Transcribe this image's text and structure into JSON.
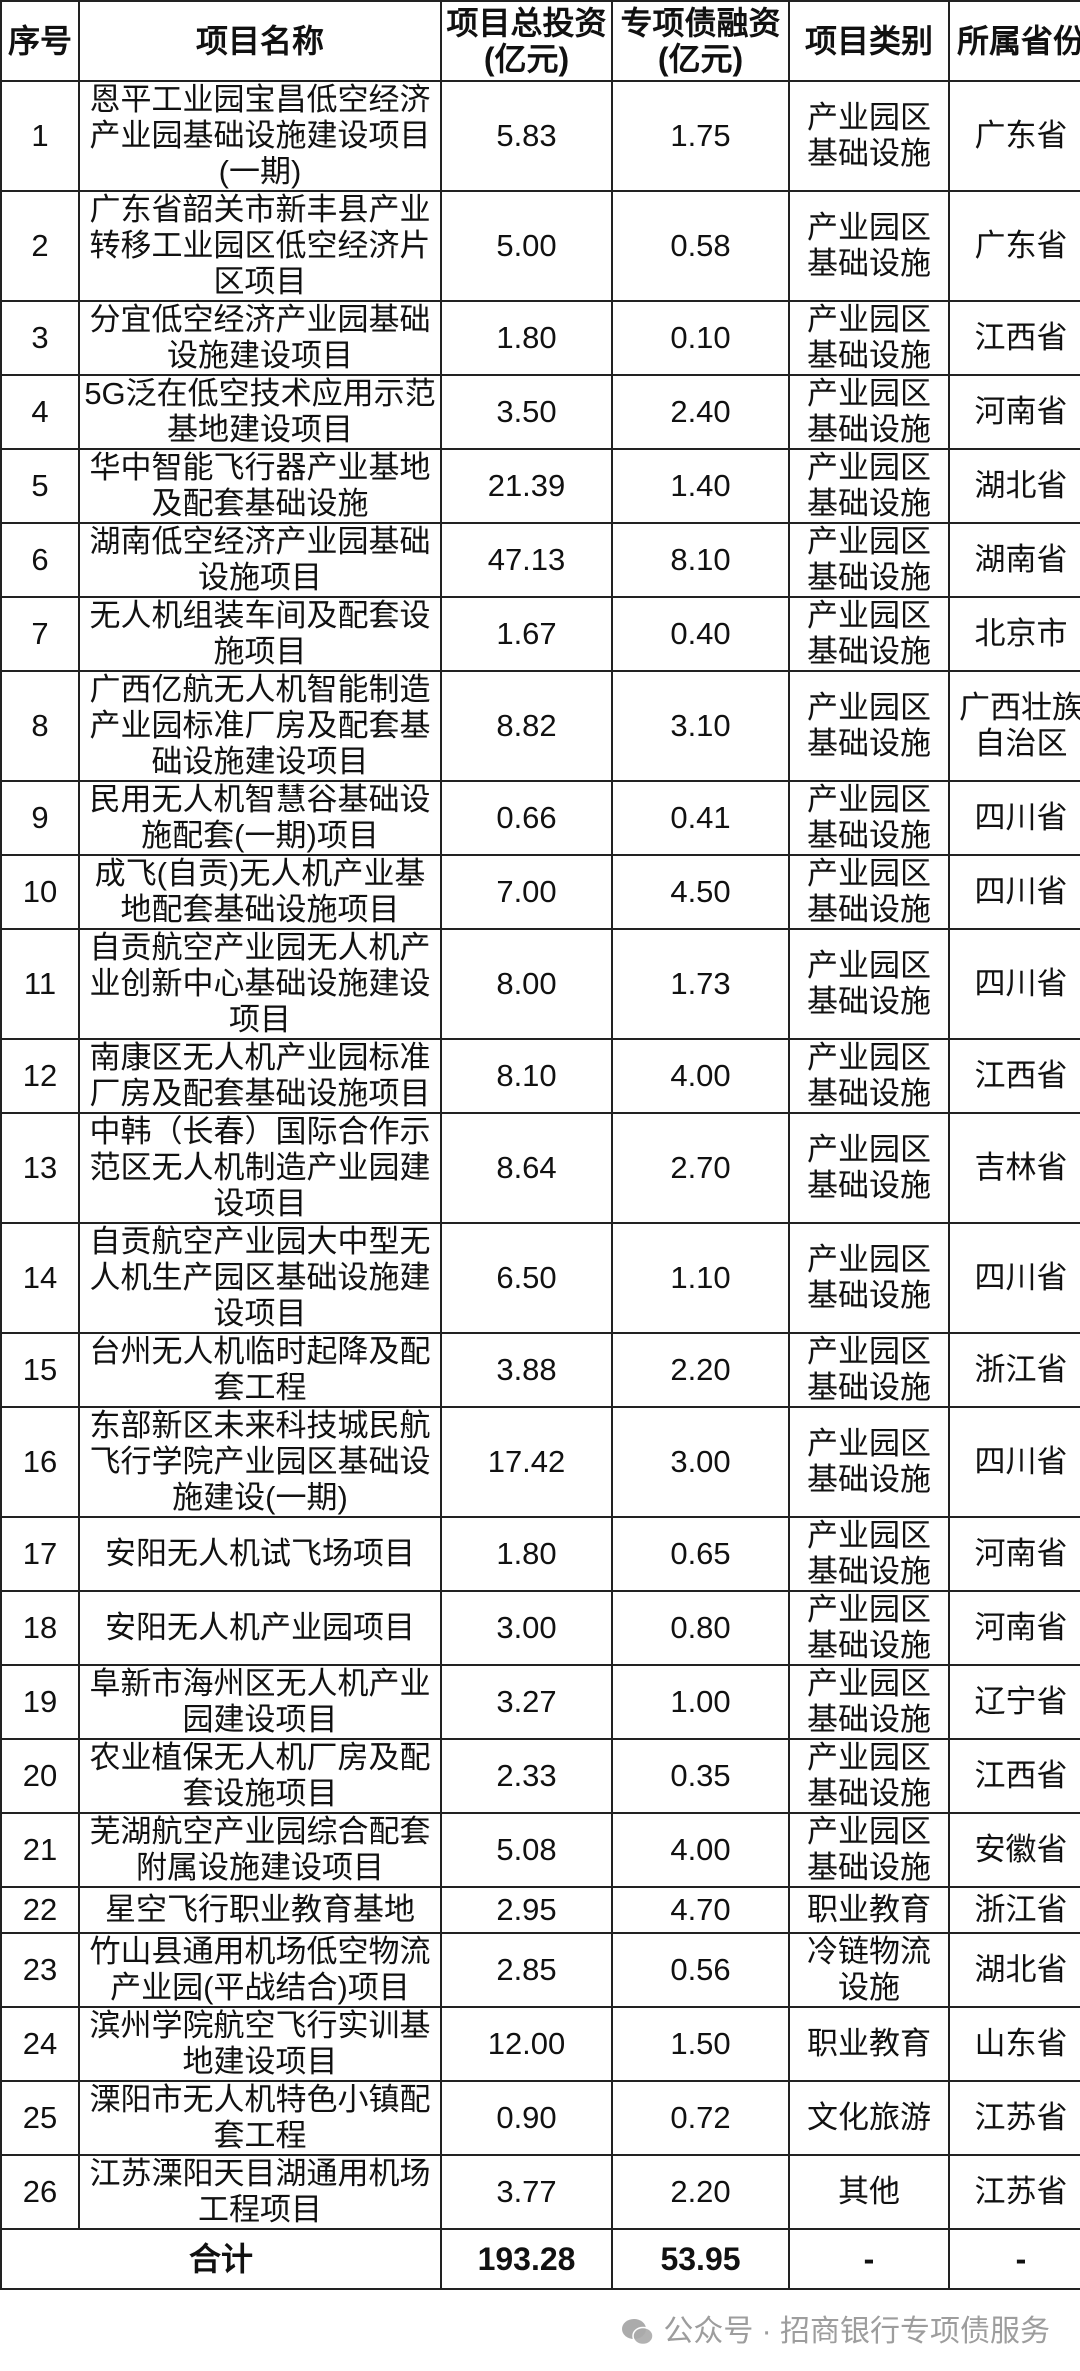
{
  "headers": [
    "序号",
    "项目名称",
    "项目总投资(亿元)",
    "专项债融资(亿元)",
    "项目类别",
    "所属省份"
  ],
  "rows": [
    [
      "1",
      "恩平工业园宝昌低空经济产业园基础设施建设项目(一期)",
      "5.83",
      "1.75",
      "产业园区基础设施",
      "广东省"
    ],
    [
      "2",
      "广东省韶关市新丰县产业转移工业园区低空经济片区项目",
      "5.00",
      "0.58",
      "产业园区基础设施",
      "广东省"
    ],
    [
      "3",
      "分宜低空经济产业园基础设施建设项目",
      "1.80",
      "0.10",
      "产业园区基础设施",
      "江西省"
    ],
    [
      "4",
      "5G泛在低空技术应用示范基地建设项目",
      "3.50",
      "2.40",
      "产业园区基础设施",
      "河南省"
    ],
    [
      "5",
      "华中智能飞行器产业基地及配套基础设施",
      "21.39",
      "1.40",
      "产业园区基础设施",
      "湖北省"
    ],
    [
      "6",
      "湖南低空经济产业园基础设施项目",
      "47.13",
      "8.10",
      "产业园区基础设施",
      "湖南省"
    ],
    [
      "7",
      "无人机组装车间及配套设施项目",
      "1.67",
      "0.40",
      "产业园区基础设施",
      "北京市"
    ],
    [
      "8",
      "广西亿航无人机智能制造产业园标准厂房及配套基础设施建设项目",
      "8.82",
      "3.10",
      "产业园区基础设施",
      "广西壮族自治区"
    ],
    [
      "9",
      "民用无人机智慧谷基础设施配套(一期)项目",
      "0.66",
      "0.41",
      "产业园区基础设施",
      "四川省"
    ],
    [
      "10",
      "成飞(自贡)无人机产业基地配套基础设施项目",
      "7.00",
      "4.50",
      "产业园区基础设施",
      "四川省"
    ],
    [
      "11",
      "自贡航空产业园无人机产业创新中心基础设施建设项目",
      "8.00",
      "1.73",
      "产业园区基础设施",
      "四川省"
    ],
    [
      "12",
      "南康区无人机产业园标准厂房及配套基础设施项目",
      "8.10",
      "4.00",
      "产业园区基础设施",
      "江西省"
    ],
    [
      "13",
      "中韩（长春）国际合作示范区无人机制造产业园建设项目",
      "8.64",
      "2.70",
      "产业园区基础设施",
      "吉林省"
    ],
    [
      "14",
      "自贡航空产业园大中型无人机生产园区基础设施建设项目",
      "6.50",
      "1.10",
      "产业园区基础设施",
      "四川省"
    ],
    [
      "15",
      "台州无人机临时起降及配套工程",
      "3.88",
      "2.20",
      "产业园区基础设施",
      "浙江省"
    ],
    [
      "16",
      "东部新区未来科技城民航飞行学院产业园区基础设施建设(一期)",
      "17.42",
      "3.00",
      "产业园区基础设施",
      "四川省"
    ],
    [
      "17",
      "安阳无人机试飞场项目",
      "1.80",
      "0.65",
      "产业园区基础设施",
      "河南省"
    ],
    [
      "18",
      "安阳无人机产业园项目",
      "3.00",
      "0.80",
      "产业园区基础设施",
      "河南省"
    ],
    [
      "19",
      "阜新市海州区无人机产业园建设项目",
      "3.27",
      "1.00",
      "产业园区基础设施",
      "辽宁省"
    ],
    [
      "20",
      "农业植保无人机厂房及配套设施项目",
      "2.33",
      "0.35",
      "产业园区基础设施",
      "江西省"
    ],
    [
      "21",
      "芜湖航空产业园综合配套附属设施建设项目",
      "5.08",
      "4.00",
      "产业园区基础设施",
      "安徽省"
    ],
    [
      "22",
      "星空飞行职业教育基地",
      "2.95",
      "4.70",
      "职业教育",
      "浙江省"
    ],
    [
      "23",
      "竹山县通用机场低空物流产业园(平战结合)项目",
      "2.85",
      "0.56",
      "冷链物流设施",
      "湖北省"
    ],
    [
      "24",
      "滨州学院航空飞行实训基地建设项目",
      "12.00",
      "1.50",
      "职业教育",
      "山东省"
    ],
    [
      "25",
      "溧阳市无人机特色小镇配套工程",
      "0.90",
      "0.72",
      "文化旅游",
      "江苏省"
    ],
    [
      "26",
      "江苏溧阳天目湖通用机场工程项目",
      "3.77",
      "2.20",
      "其他",
      "江苏省"
    ]
  ],
  "total": {
    "label": "合计",
    "investment": "193.28",
    "bond": "53.95",
    "category": "-",
    "province": "-"
  },
  "watermark": {
    "text": "公众号 · 招商银行专项债服务",
    "icon": "wechat-icon"
  }
}
